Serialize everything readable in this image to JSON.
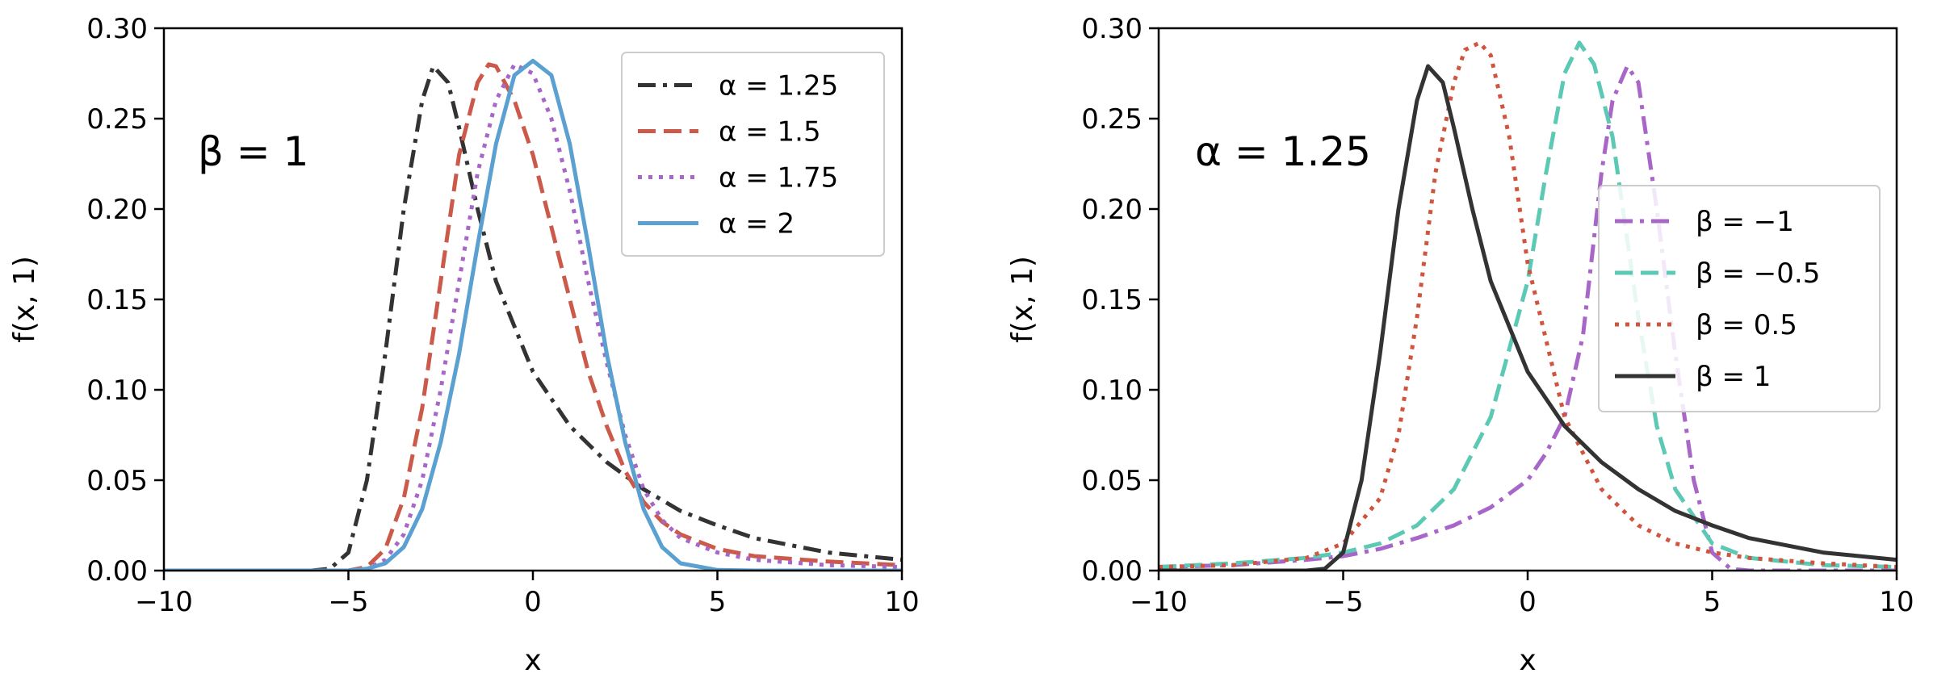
{
  "chart_data": [
    {
      "type": "line",
      "xlabel": "x",
      "ylabel": "f(x, 1)",
      "xlim": [
        -10,
        10
      ],
      "ylim": [
        0,
        0.3
      ],
      "xticks": [
        -10,
        -5,
        0,
        5,
        10
      ],
      "xtick_labels": [
        "−10",
        "−5",
        "0",
        "5",
        "10"
      ],
      "yticks": [
        0,
        0.05,
        0.1,
        0.15,
        0.2,
        0.25,
        0.3
      ],
      "ytick_labels": [
        "0.00",
        "0.05",
        "0.10",
        "0.15",
        "0.20",
        "0.25",
        "0.30"
      ],
      "annotation": "β = 1",
      "grid": false,
      "legend_position": "top-right",
      "series": [
        {
          "name": "α = 1.25",
          "color": "#333333",
          "dash": "dashdot",
          "x": [
            -10,
            -6,
            -5.5,
            -5,
            -4.5,
            -4,
            -3.5,
            -3,
            -2.7,
            -2.3,
            -2,
            -1.5,
            -1,
            0,
            1,
            2,
            3,
            4,
            5,
            6,
            8,
            10
          ],
          "y": [
            0,
            0,
            0.001,
            0.01,
            0.05,
            0.12,
            0.2,
            0.26,
            0.279,
            0.27,
            0.245,
            0.2,
            0.16,
            0.11,
            0.08,
            0.06,
            0.045,
            0.033,
            0.025,
            0.018,
            0.01,
            0.006
          ]
        },
        {
          "name": "α = 1.5",
          "color": "#cc5a4a",
          "dash": "dashed",
          "x": [
            -10,
            -5,
            -4.5,
            -4,
            -3.5,
            -3,
            -2.5,
            -2,
            -1.5,
            -1.2,
            -1,
            -0.5,
            0,
            0.5,
            1,
            1.5,
            2,
            2.5,
            3,
            3.5,
            4,
            5,
            6,
            8,
            10
          ],
          "y": [
            0,
            0,
            0.002,
            0.012,
            0.04,
            0.09,
            0.16,
            0.23,
            0.27,
            0.28,
            0.279,
            0.26,
            0.23,
            0.19,
            0.15,
            0.11,
            0.08,
            0.055,
            0.038,
            0.027,
            0.02,
            0.012,
            0.008,
            0.005,
            0.003
          ]
        },
        {
          "name": "α = 1.75",
          "color": "#a866c9",
          "dash": "dotted",
          "x": [
            -10,
            -5,
            -4.5,
            -4,
            -3.5,
            -3,
            -2.5,
            -2,
            -1.5,
            -1,
            -0.5,
            0,
            0.5,
            1,
            1.5,
            2,
            2.5,
            3,
            3.5,
            4,
            5,
            6,
            8,
            10
          ],
          "y": [
            0,
            0,
            0.001,
            0.006,
            0.02,
            0.05,
            0.1,
            0.16,
            0.22,
            0.26,
            0.28,
            0.275,
            0.25,
            0.21,
            0.16,
            0.115,
            0.075,
            0.045,
            0.028,
            0.018,
            0.01,
            0.006,
            0.003,
            0.002
          ]
        },
        {
          "name": "α = 2",
          "color": "#5aa0d0",
          "dash": "solid",
          "x": [
            -10,
            -5,
            -4.5,
            -4,
            -3.5,
            -3,
            -2.5,
            -2,
            -1.5,
            -1,
            -0.5,
            0,
            0.5,
            1,
            1.5,
            2,
            2.5,
            3,
            3.5,
            4,
            5,
            6,
            10
          ],
          "y": [
            0,
            0,
            0.001,
            0.004,
            0.013,
            0.034,
            0.071,
            0.12,
            0.18,
            0.236,
            0.274,
            0.282,
            0.274,
            0.236,
            0.18,
            0.12,
            0.071,
            0.034,
            0.013,
            0.004,
            0.0003,
            0,
            0
          ]
        }
      ]
    },
    {
      "type": "line",
      "xlabel": "x",
      "ylabel": "f(x, 1)",
      "xlim": [
        -10,
        10
      ],
      "ylim": [
        0,
        0.3
      ],
      "xticks": [
        -10,
        -5,
        0,
        5,
        10
      ],
      "xtick_labels": [
        "−10",
        "−5",
        "0",
        "5",
        "10"
      ],
      "yticks": [
        0,
        0.05,
        0.1,
        0.15,
        0.2,
        0.25,
        0.3
      ],
      "ytick_labels": [
        "0.00",
        "0.05",
        "0.10",
        "0.15",
        "0.20",
        "0.25",
        "0.30"
      ],
      "annotation": "α = 1.25",
      "grid": false,
      "legend_position": "center-right",
      "series": [
        {
          "name": "β = −1",
          "color": "#a866c9",
          "dash": "dashdot",
          "x": [
            -10,
            -8,
            -6,
            -5,
            -4,
            -3,
            -2,
            -1,
            0,
            0.5,
            1,
            1.5,
            2,
            2.3,
            2.7,
            3,
            3.5,
            4,
            4.5,
            5,
            5.5,
            6,
            10
          ],
          "y": [
            0.002,
            0.003,
            0.006,
            0.008,
            0.012,
            0.018,
            0.025,
            0.035,
            0.05,
            0.065,
            0.085,
            0.13,
            0.22,
            0.26,
            0.279,
            0.27,
            0.2,
            0.12,
            0.05,
            0.01,
            0.001,
            0,
            0
          ]
        },
        {
          "name": "β = −0.5",
          "color": "#5cc9b5",
          "dash": "dashed",
          "x": [
            -10,
            -8,
            -6,
            -5,
            -4,
            -3,
            -2,
            -1,
            0,
            0.5,
            1,
            1.4,
            1.8,
            2.3,
            3,
            3.5,
            4,
            5,
            6,
            8,
            10
          ],
          "y": [
            0.002,
            0.004,
            0.007,
            0.01,
            0.015,
            0.025,
            0.045,
            0.085,
            0.16,
            0.22,
            0.275,
            0.292,
            0.28,
            0.24,
            0.14,
            0.08,
            0.045,
            0.015,
            0.007,
            0.003,
            0.002
          ]
        },
        {
          "name": "β = 0.5",
          "color": "#d0553f",
          "dash": "dotted",
          "x": [
            -10,
            -8,
            -6,
            -5,
            -4,
            -3.5,
            -3,
            -2.5,
            -2,
            -1.7,
            -1.3,
            -1,
            -0.5,
            0,
            1,
            2,
            3,
            4,
            5,
            6,
            8,
            10
          ],
          "y": [
            0.002,
            0.003,
            0.007,
            0.015,
            0.04,
            0.075,
            0.14,
            0.22,
            0.27,
            0.288,
            0.292,
            0.285,
            0.24,
            0.17,
            0.085,
            0.045,
            0.025,
            0.015,
            0.01,
            0.007,
            0.004,
            0.002
          ]
        },
        {
          "name": "β = 1",
          "color": "#333333",
          "dash": "solid",
          "x": [
            -10,
            -6,
            -5.5,
            -5,
            -4.5,
            -4,
            -3.5,
            -3,
            -2.7,
            -2.3,
            -2,
            -1.5,
            -1,
            0,
            1,
            2,
            3,
            4,
            5,
            6,
            8,
            10
          ],
          "y": [
            0,
            0,
            0.001,
            0.01,
            0.05,
            0.12,
            0.2,
            0.26,
            0.279,
            0.27,
            0.245,
            0.2,
            0.16,
            0.11,
            0.08,
            0.06,
            0.045,
            0.033,
            0.025,
            0.018,
            0.01,
            0.006
          ]
        }
      ]
    }
  ]
}
